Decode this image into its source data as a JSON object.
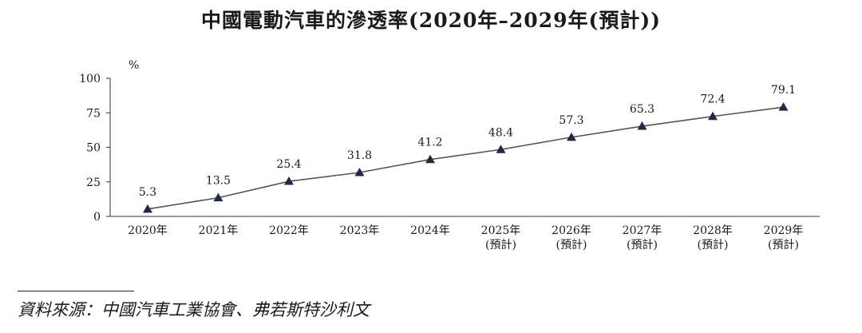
{
  "chart_data": {
    "type": "line",
    "title": "中國電動汽車的滲透率(2020年–2029年(預計))",
    "ylabel": "%",
    "ylim": [
      0,
      100
    ],
    "yticks": [
      0,
      25,
      50,
      75,
      100
    ],
    "grid": false,
    "marker": "triangle",
    "line_color": "#555555",
    "marker_color": "#1f2a44",
    "categories": [
      [
        "2020年"
      ],
      [
        "2021年"
      ],
      [
        "2022年"
      ],
      [
        "2023年"
      ],
      [
        "2024年"
      ],
      [
        "2025年",
        "(預計)"
      ],
      [
        "2026年",
        "(預計)"
      ],
      [
        "2027年",
        "(預計)"
      ],
      [
        "2028年",
        "(預計)"
      ],
      [
        "2029年",
        "(預計)"
      ]
    ],
    "values": [
      5.3,
      13.5,
      25.4,
      31.8,
      41.2,
      48.4,
      57.3,
      65.3,
      72.4,
      79.1
    ],
    "value_labels": [
      "5.3",
      "13.5",
      "25.4",
      "31.8",
      "41.2",
      "48.4",
      "57.3",
      "65.3",
      "72.4",
      "79.1"
    ]
  },
  "source": "資料來源：中國汽車工業協會、弗若斯特沙利文"
}
